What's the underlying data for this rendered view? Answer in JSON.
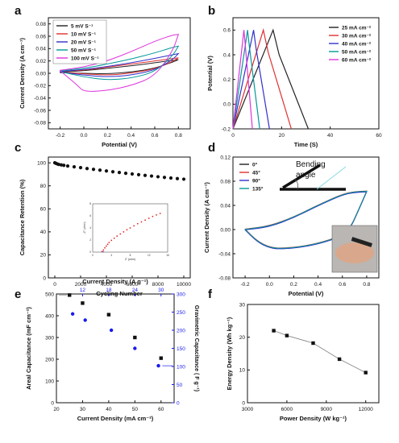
{
  "panels": {
    "a": {
      "letter": "a"
    },
    "b": {
      "letter": "b"
    },
    "c": {
      "letter": "c"
    },
    "d": {
      "letter": "d"
    },
    "e": {
      "letter": "e"
    },
    "f": {
      "letter": "f"
    }
  },
  "chart_data": [
    {
      "panel": "a",
      "type": "line",
      "xlabel": "Potential (V)",
      "ylabel": "Current Density (A cm⁻¹)",
      "xlim": [
        -0.3,
        0.9
      ],
      "ylim": [
        -0.09,
        0.09
      ],
      "xticks": [
        "-0.2",
        "0.0",
        "0.2",
        "0.4",
        "0.6",
        "0.8"
      ],
      "yticks": [
        "-0.08",
        "-0.06",
        "-0.04",
        "-0.02",
        "0.00",
        "0.02",
        "0.04",
        "0.06",
        "0.08"
      ],
      "legend_position": "top-left",
      "series": [
        {
          "name": "5 mV S⁻¹",
          "color": "#222222",
          "upper": [
            [
              -0.2,
              0.002
            ],
            [
              0.0,
              0.004
            ],
            [
              0.2,
              0.008
            ],
            [
              0.4,
              0.012
            ],
            [
              0.6,
              0.017
            ],
            [
              0.75,
              0.021
            ],
            [
              0.8,
              0.022
            ]
          ],
          "lower": [
            [
              -0.2,
              0.001
            ],
            [
              0.0,
              0.0
            ],
            [
              0.2,
              -0.001
            ],
            [
              0.4,
              0.002
            ],
            [
              0.6,
              0.008
            ],
            [
              0.75,
              0.018
            ],
            [
              0.8,
              0.022
            ]
          ]
        },
        {
          "name": "10 mV S⁻¹",
          "color": "#e03030",
          "upper": [
            [
              -0.2,
              0.003
            ],
            [
              0.0,
              0.005
            ],
            [
              0.2,
              0.01
            ],
            [
              0.4,
              0.015
            ],
            [
              0.6,
              0.02
            ],
            [
              0.75,
              0.024
            ],
            [
              0.8,
              0.025
            ]
          ],
          "lower": [
            [
              -0.2,
              0.002
            ],
            [
              0.0,
              -0.001
            ],
            [
              0.2,
              -0.003
            ],
            [
              0.4,
              0.0
            ],
            [
              0.6,
              0.007
            ],
            [
              0.75,
              0.019
            ],
            [
              0.8,
              0.025
            ]
          ]
        },
        {
          "name": "20 mV S⁻¹",
          "color": "#3030cc",
          "upper": [
            [
              -0.2,
              0.003
            ],
            [
              0.0,
              0.006
            ],
            [
              0.2,
              0.011
            ],
            [
              0.4,
              0.017
            ],
            [
              0.6,
              0.024
            ],
            [
              0.75,
              0.03
            ],
            [
              0.8,
              0.032
            ]
          ],
          "lower": [
            [
              -0.2,
              0.002
            ],
            [
              0.0,
              -0.003
            ],
            [
              0.2,
              -0.006
            ],
            [
              0.4,
              -0.003
            ],
            [
              0.6,
              0.005
            ],
            [
              0.75,
              0.022
            ],
            [
              0.8,
              0.032
            ]
          ]
        },
        {
          "name": "50 mV S⁻¹",
          "color": "#009999",
          "upper": [
            [
              -0.2,
              0.004
            ],
            [
              0.0,
              0.008
            ],
            [
              0.2,
              0.015
            ],
            [
              0.4,
              0.023
            ],
            [
              0.6,
              0.033
            ],
            [
              0.75,
              0.042
            ],
            [
              0.8,
              0.044
            ]
          ],
          "lower": [
            [
              -0.2,
              0.003
            ],
            [
              0.0,
              -0.006
            ],
            [
              0.2,
              -0.011
            ],
            [
              0.4,
              -0.008
            ],
            [
              0.6,
              0.002
            ],
            [
              0.75,
              0.028
            ],
            [
              0.8,
              0.044
            ]
          ]
        },
        {
          "name": "100 mV S⁻¹",
          "color": "#dd33dd",
          "upper": [
            [
              -0.2,
              0.005
            ],
            [
              0.0,
              0.01
            ],
            [
              0.2,
              0.02
            ],
            [
              0.4,
              0.035
            ],
            [
              0.6,
              0.052
            ],
            [
              0.75,
              0.062
            ],
            [
              0.8,
              0.063
            ]
          ],
          "lower": [
            [
              -0.2,
              0.004
            ],
            [
              -0.05,
              -0.02
            ],
            [
              0.0,
              -0.03
            ],
            [
              0.2,
              -0.028
            ],
            [
              0.4,
              -0.02
            ],
            [
              0.6,
              -0.005
            ],
            [
              0.75,
              0.035
            ],
            [
              0.8,
              0.063
            ]
          ]
        }
      ]
    },
    {
      "panel": "b",
      "type": "line",
      "xlabel": "Time (S)",
      "ylabel": "Potential (V)",
      "xlim": [
        0,
        60
      ],
      "ylim": [
        -0.2,
        0.7
      ],
      "xticks": [
        "0",
        "20",
        "40",
        "60"
      ],
      "yticks": [
        "-0.2",
        "0.0",
        "0.2",
        "0.4",
        "0.6"
      ],
      "legend_position": "top-right",
      "series": [
        {
          "name": "25 mA cm⁻²",
          "color": "#222222",
          "points": [
            [
              0,
              -0.2
            ],
            [
              16.5,
              0.6
            ],
            [
              19,
              0.4
            ],
            [
              31,
              -0.2
            ]
          ]
        },
        {
          "name": "30 mA cm⁻²",
          "color": "#e03030",
          "points": [
            [
              0,
              -0.2
            ],
            [
              12.5,
              0.6
            ],
            [
              14.5,
              0.42
            ],
            [
              24,
              -0.2
            ]
          ]
        },
        {
          "name": "40 mA cm⁻²",
          "color": "#3030cc",
          "points": [
            [
              0,
              -0.2
            ],
            [
              8.5,
              0.6
            ],
            [
              9.5,
              0.45
            ],
            [
              15,
              -0.2
            ]
          ]
        },
        {
          "name": "50 mA cm⁻²",
          "color": "#009999",
          "points": [
            [
              0,
              -0.2
            ],
            [
              6.0,
              0.6
            ],
            [
              6.8,
              0.46
            ],
            [
              11,
              -0.2
            ]
          ]
        },
        {
          "name": "60 mA cm⁻²",
          "color": "#dd33dd",
          "points": [
            [
              0,
              -0.2
            ],
            [
              4.5,
              0.6
            ],
            [
              5.1,
              0.47
            ],
            [
              8,
              -0.2
            ]
          ]
        }
      ]
    },
    {
      "panel": "c",
      "type": "scatter",
      "xlabel": "Cycling Number",
      "ylabel": "Capacitance Retention (%)",
      "xlim": [
        -500,
        10500
      ],
      "ylim": [
        0,
        105
      ],
      "xticks": [
        "0",
        "2000",
        "4000",
        "6000",
        "8000",
        "10000"
      ],
      "yticks": [
        "0",
        "20",
        "40",
        "60",
        "80",
        "100"
      ],
      "x": [
        0,
        100,
        200,
        300,
        500,
        700,
        1000,
        1500,
        2000,
        2500,
        3000,
        3500,
        4000,
        4500,
        5000,
        5500,
        6000,
        6500,
        7000,
        7500,
        8000,
        8500,
        9000,
        9500,
        10000
      ],
      "y": [
        100,
        99.5,
        99,
        98.6,
        98.2,
        97.8,
        97.2,
        96.5,
        95.8,
        95,
        94.3,
        93.6,
        92.9,
        92.2,
        91.6,
        90.9,
        90.3,
        89.7,
        89.1,
        88.5,
        87.9,
        87.3,
        86.8,
        86.3,
        85.8
      ],
      "inset": {
        "xlabel": "Z' (ohm)",
        "ylabel": "-Z'' (ohm)",
        "xlim": [
          0,
          16
        ],
        "ylim": [
          0,
          8
        ],
        "xticks": [
          "0",
          "4",
          "8",
          "12",
          "16"
        ],
        "yticks": [
          "0",
          "2",
          "4",
          "6",
          "8"
        ],
        "x": [
          2.0,
          2.3,
          2.6,
          2.9,
          3.2,
          3.5,
          4.0,
          4.6,
          5.2,
          5.9,
          6.6,
          7.3,
          8.0,
          8.8,
          9.6,
          10.4,
          11.2,
          12.0,
          12.8,
          13.6,
          14.4
        ],
        "y": [
          0.1,
          0.35,
          0.7,
          1.0,
          1.3,
          1.6,
          1.95,
          2.3,
          2.65,
          3.0,
          3.35,
          3.7,
          4.0,
          4.35,
          4.7,
          5.0,
          5.3,
          5.6,
          5.9,
          6.15,
          6.4
        ]
      }
    },
    {
      "panel": "d",
      "type": "line",
      "xlabel": "Potential (V)",
      "ylabel": "Current Density (A cm⁻¹)",
      "xlim": [
        -0.3,
        0.9
      ],
      "ylim": [
        -0.08,
        0.12
      ],
      "xticks": [
        "-0.2",
        "0.0",
        "0.2",
        "0.4",
        "0.6",
        "0.8"
      ],
      "yticks": [
        "-0.08",
        "-0.04",
        "0.00",
        "0.04",
        "0.08",
        "0.12"
      ],
      "legend_position": "top-left",
      "annotation": "Bending angle",
      "series": [
        {
          "name": "0°",
          "color": "#222222"
        },
        {
          "name": "45°",
          "color": "#e03030"
        },
        {
          "name": "90°",
          "color": "#3030cc"
        },
        {
          "name": "135°",
          "color": "#009999"
        }
      ],
      "curve": {
        "upper": [
          [
            -0.2,
            0.0
          ],
          [
            0.0,
            0.005
          ],
          [
            0.2,
            0.02
          ],
          [
            0.4,
            0.04
          ],
          [
            0.6,
            0.058
          ],
          [
            0.7,
            0.062
          ],
          [
            0.8,
            0.063
          ]
        ],
        "lower": [
          [
            -0.2,
            0.0
          ],
          [
            -0.1,
            -0.02
          ],
          [
            0.0,
            -0.03
          ],
          [
            0.1,
            -0.032
          ],
          [
            0.3,
            -0.028
          ],
          [
            0.5,
            -0.018
          ],
          [
            0.65,
            -0.005
          ],
          [
            0.75,
            0.04
          ],
          [
            0.8,
            0.063
          ]
        ]
      }
    },
    {
      "panel": "e",
      "type": "scatter",
      "xlabel": "Current Density (mA cm⁻²)",
      "ylabel": "Areal Capacitance (mF cm⁻²)",
      "ylabel_right": "Gravimetric Capacitance ( F g⁻¹)",
      "xlabel_top": "Current Density (A g⁻¹)",
      "xlim": [
        20,
        65
      ],
      "ylim": [
        0,
        500
      ],
      "ylim_right": [
        0,
        300
      ],
      "xticks": [
        "20",
        "30",
        "40",
        "50",
        "60"
      ],
      "yticks": [
        "0",
        "100",
        "200",
        "300",
        "400",
        "500"
      ],
      "xticks_top": [
        "12",
        "18",
        "24",
        "30"
      ],
      "yticks_right": [
        "0",
        "50",
        "100",
        "150",
        "200",
        "250",
        "300"
      ],
      "series": [
        {
          "name": "Areal Capacitance",
          "color": "#111111",
          "axis": "left",
          "x": [
            25,
            30,
            40,
            50,
            60
          ],
          "y": [
            495,
            458,
            405,
            300,
            205
          ]
        },
        {
          "name": "Gravimetric Capacitance",
          "color": "#1a1aee",
          "axis": "right",
          "x": [
            26.2,
            31,
            41,
            50,
            59
          ],
          "y": [
            245,
            228,
            200,
            150,
            102
          ]
        }
      ]
    },
    {
      "panel": "f",
      "type": "line",
      "xlabel": "Power Density (W kg⁻¹)",
      "ylabel": "Energy Density (Wh kg⁻¹)",
      "xlim": [
        3000,
        13000
      ],
      "ylim": [
        0,
        30
      ],
      "xticks": [
        "3000",
        "6000",
        "9000",
        "12000"
      ],
      "yticks": [
        "0",
        "10",
        "20",
        "30"
      ],
      "x": [
        5000,
        6000,
        8000,
        10000,
        12000
      ],
      "y": [
        22,
        20.5,
        18.2,
        13.3,
        9.2
      ]
    }
  ]
}
